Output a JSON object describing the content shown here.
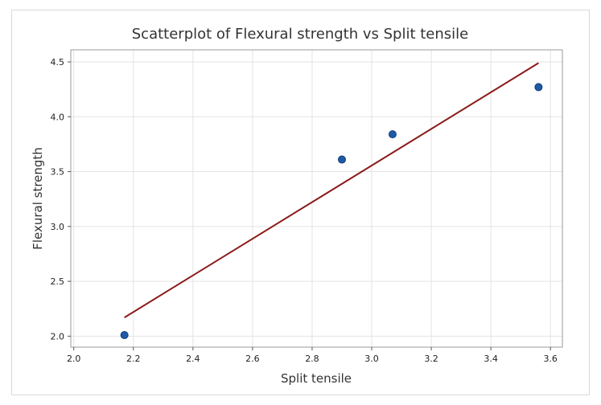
{
  "chart_data": {
    "type": "scatter",
    "title": "Scatterplot of Flexural strength vs Split tensile",
    "xlabel": "Split tensile",
    "ylabel": "Flexural strength",
    "xlim": [
      1.99,
      3.64
    ],
    "ylim": [
      1.9,
      4.61
    ],
    "xticks": [
      "2.0",
      "2.2",
      "2.4",
      "2.6",
      "2.8",
      "3.0",
      "3.2",
      "3.4",
      "3.6"
    ],
    "yticks": [
      "2.0",
      "2.5",
      "3.0",
      "3.5",
      "4.0",
      "4.5"
    ],
    "grid": true,
    "series": [
      {
        "name": "Data",
        "x": [
          2.17,
          2.9,
          3.07,
          3.56
        ],
        "y": [
          2.01,
          3.61,
          3.84,
          4.27
        ],
        "color": "#1f5aa6"
      }
    ],
    "fit_line": {
      "x": [
        2.17,
        3.56
      ],
      "y": [
        2.17,
        4.49
      ],
      "color": "#8b1a1a"
    }
  }
}
